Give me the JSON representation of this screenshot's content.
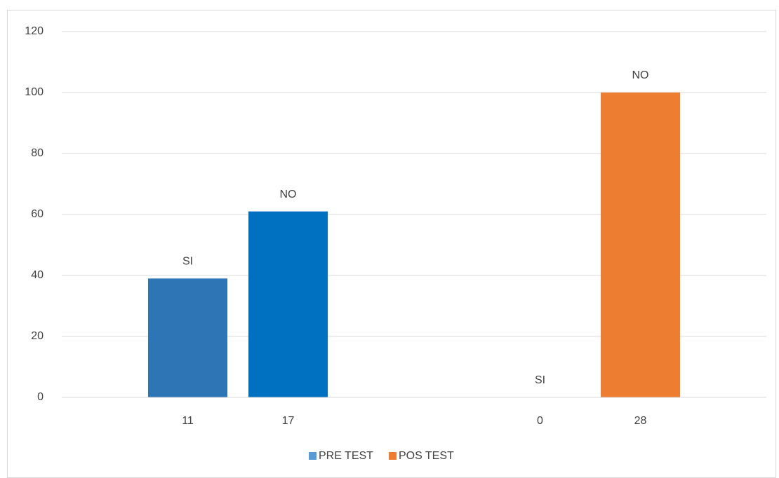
{
  "chart_data": {
    "type": "bar",
    "categories": [
      "11",
      "17",
      "0",
      "28"
    ],
    "series": [
      {
        "name": "PRE TEST",
        "color": "#5b9bd5",
        "bar_colors": [
          "#2e75b6",
          "#0070c0",
          null,
          null
        ],
        "values": [
          39,
          61,
          null,
          null
        ],
        "value_labels": [
          "SI",
          "NO",
          null,
          null
        ]
      },
      {
        "name": "POS TEST",
        "color": "#ed7d31",
        "bar_colors": [
          null,
          null,
          "#ed7d31",
          "#ed7d31"
        ],
        "values": [
          null,
          null,
          0,
          100
        ],
        "value_labels": [
          null,
          null,
          "SI",
          "NO"
        ]
      }
    ],
    "ylim": [
      0,
      120
    ],
    "yticks": [
      0,
      20,
      40,
      60,
      80,
      100,
      120
    ],
    "grid": true,
    "legend": "bottom"
  }
}
